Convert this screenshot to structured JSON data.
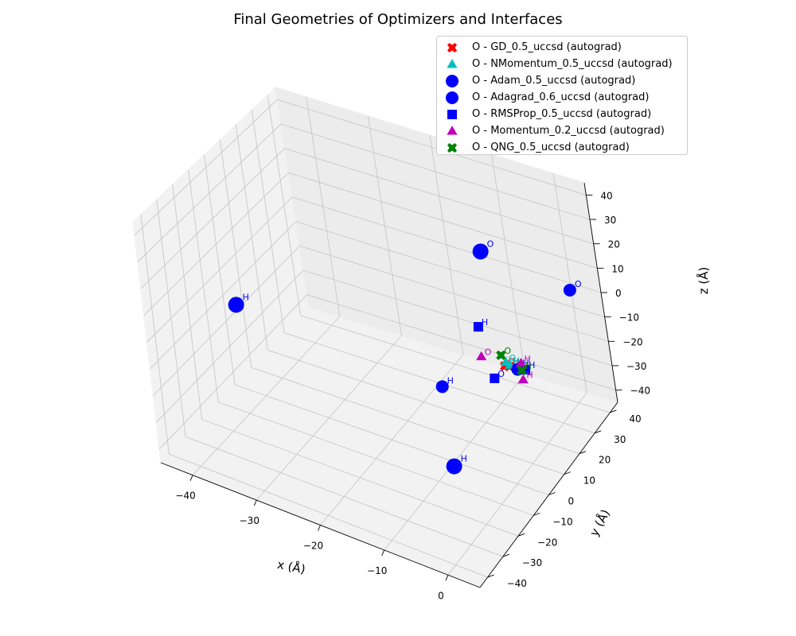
{
  "chart_data": {
    "type": "scatter",
    "title": "Final Geometries of Optimizers and Interfaces",
    "xlabel": "x (Å)",
    "ylabel": "y (Å)",
    "zlabel": "z (Å)",
    "xlim": [
      -45,
      5
    ],
    "ylim": [
      -45,
      45
    ],
    "zlim": [
      -45,
      45
    ],
    "xticks": [
      "−40",
      "−30",
      "−20",
      "−10",
      "0"
    ],
    "yticks": [
      "−40",
      "−30",
      "−20",
      "−10",
      "0",
      "10",
      "20",
      "30",
      "40"
    ],
    "zticks": [
      "−40",
      "−30",
      "−20",
      "−10",
      "0",
      "10",
      "20",
      "30",
      "40"
    ],
    "legend_position": "top-right",
    "grid": true,
    "series": [
      {
        "name": "O - GD_0.5_uccsd (autograd)",
        "color": "#ff0000",
        "marker": "X",
        "points": [
          {
            "x": 0.2,
            "y": 1.0,
            "z": 0.5,
            "label": "O"
          },
          {
            "x": 0.9,
            "y": 1.2,
            "z": 0.8,
            "label": "H"
          }
        ]
      },
      {
        "name": "O - NMomentum_0.5_uccsd (autograd)",
        "color": "#00bfbf",
        "marker": "^",
        "points": [
          {
            "x": 0.3,
            "y": 1.6,
            "z": 1.6,
            "label": "O"
          },
          {
            "x": 1.0,
            "y": 1.3,
            "z": 1.3,
            "label": "H"
          }
        ]
      },
      {
        "name": "O - Adam_0.5_uccsd (autograd)",
        "color": "#0000ff",
        "marker": "o",
        "size": "large",
        "points": [
          {
            "x": -1.0,
            "y": 0.0,
            "z": 45.0,
            "label": "O"
          },
          {
            "x": -43.0,
            "y": 0.0,
            "z": -12.0,
            "label": "H"
          },
          {
            "x": 2.5,
            "y": -43.0,
            "z": -3.5,
            "label": "H"
          }
        ]
      },
      {
        "name": "O - Adagrad_0.6_uccsd (autograd)",
        "color": "#0000ff",
        "marker": "o",
        "points": [
          {
            "x": 1.0,
            "y": 41.0,
            "z": 1.0,
            "label": "O"
          },
          {
            "x": -8.0,
            "y": -8.0,
            "z": -8.0,
            "label": "H"
          },
          {
            "x": 2.0,
            "y": 2.0,
            "z": 0.0,
            "label": "H"
          }
        ]
      },
      {
        "name": "O - RMSProp_0.5_uccsd (autograd)",
        "color": "#0000ff",
        "marker": "s",
        "points": [
          {
            "x": 0.0,
            "y": -5.0,
            "z": 0.0,
            "label": "O"
          },
          {
            "x": -6.0,
            "y": 10.0,
            "z": 4.0,
            "label": "H"
          },
          {
            "x": 3.0,
            "y": 3.0,
            "z": 0.0,
            "label": "H"
          }
        ]
      },
      {
        "name": "O - Momentum_0.2_uccsd (autograd)",
        "color": "#bf00bf",
        "marker": "^",
        "points": [
          {
            "x": -3.5,
            "y": 1.0,
            "z": 1.0,
            "label": "O"
          },
          {
            "x": 2.4,
            "y": 3.0,
            "z": 2.0,
            "label": "H"
          },
          {
            "x": 2.4,
            "y": 3.0,
            "z": -4.5,
            "label": "H"
          }
        ]
      },
      {
        "name": "O - QNG_0.5_uccsd (autograd)",
        "color": "#008000",
        "marker": "X",
        "points": [
          {
            "x": -0.6,
            "y": 2.4,
            "z": 3.0,
            "label": "O"
          },
          {
            "x": 2.6,
            "y": 2.2,
            "z": 0.0,
            "label": "H"
          }
        ]
      }
    ]
  }
}
